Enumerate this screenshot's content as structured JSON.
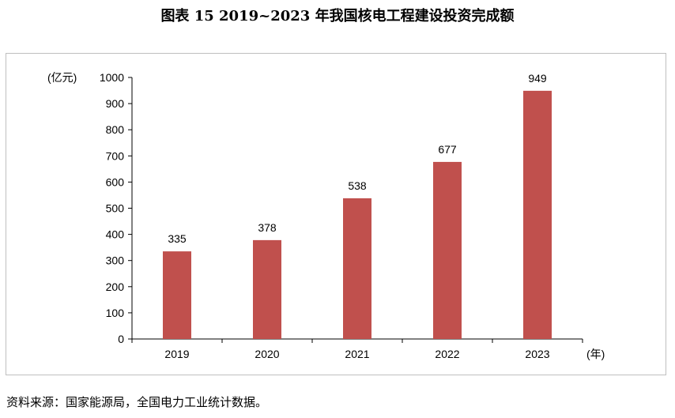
{
  "title": "图表 15  2019~2023 年我国核电工程建设投资完成额",
  "source": "资料来源：国家能源局，全国电力工业统计数据。",
  "chart_data": {
    "type": "bar",
    "categories": [
      "2019",
      "2020",
      "2021",
      "2022",
      "2023"
    ],
    "values": [
      335,
      378,
      538,
      677,
      949
    ],
    "data_labels": [
      "335",
      "378",
      "538",
      "677",
      "949"
    ],
    "ylabel": "(亿元)",
    "xlabel": "(年)",
    "ylim": [
      0,
      1000
    ],
    "yticks": [
      "0",
      "100",
      "200",
      "300",
      "400",
      "500",
      "600",
      "700",
      "800",
      "900",
      "1000"
    ],
    "bar_color": "#c0504d",
    "grid": false,
    "legend": "none"
  }
}
